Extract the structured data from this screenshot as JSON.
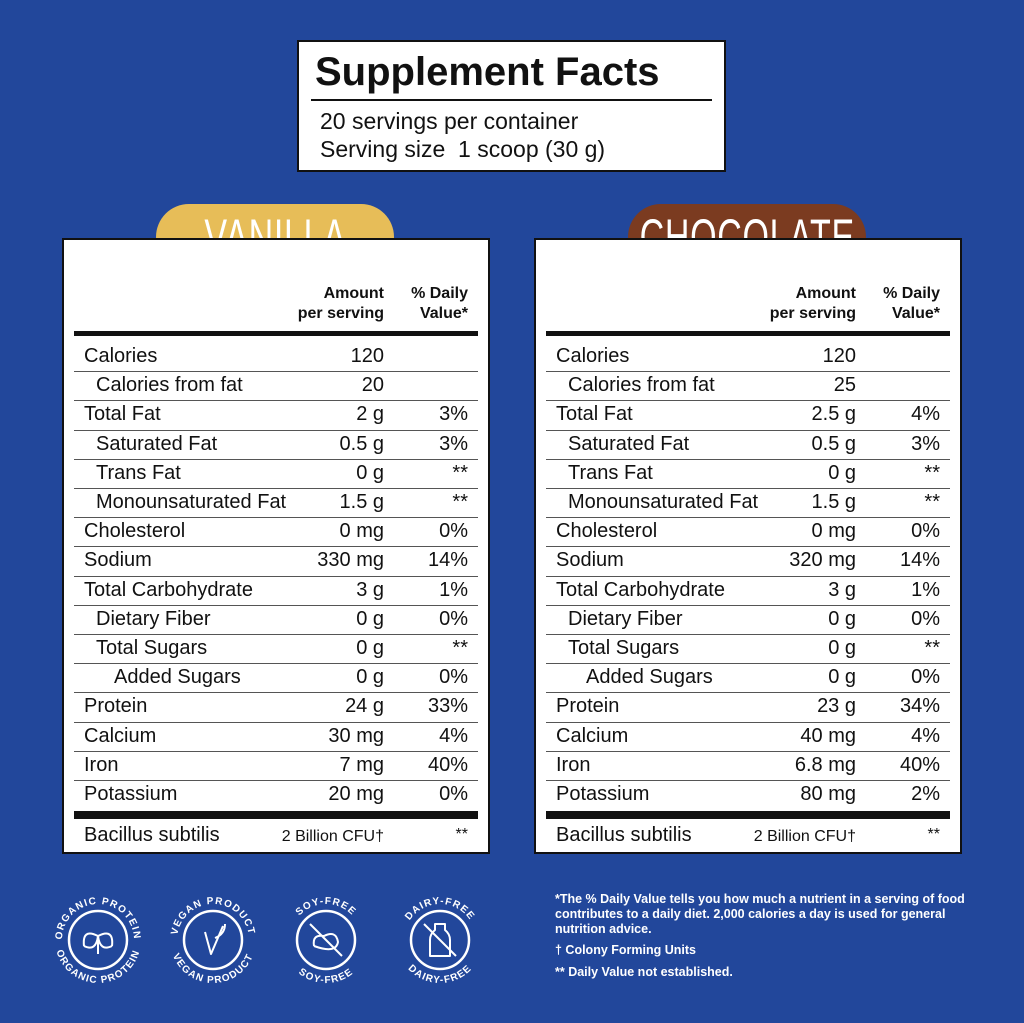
{
  "header": {
    "title": "Supplement Facts",
    "servings": "20 servings per container",
    "serving_size": "Serving size  1 scoop (30 g)"
  },
  "panels": [
    {
      "flavor": "VANILLA",
      "amount_header": [
        "Amount",
        "per serving"
      ],
      "dv_header": [
        "% Daily",
        "Value*"
      ],
      "rows": [
        {
          "name": "Calories",
          "amount": "120"
        },
        {
          "name": "Calories from fat",
          "amount": "20"
        },
        {
          "name": "Total Fat",
          "amount": "2 g",
          "dv": "3%"
        },
        {
          "name": "Saturated Fat",
          "amount": "0.5 g",
          "dv": "3%"
        },
        {
          "name": "Trans Fat",
          "amount": "0 g",
          "dv": "**"
        },
        {
          "name": "Monounsaturated Fat",
          "amount": "1.5 g",
          "dv": "**"
        },
        {
          "name": "Cholesterol",
          "amount": "0 mg",
          "dv": "0%"
        },
        {
          "name": "Sodium",
          "amount": "330 mg",
          "dv": "14%"
        },
        {
          "name": "Total Carbohydrate",
          "amount": "3 g",
          "dv": "1%"
        },
        {
          "name": "Dietary Fiber",
          "amount": "0 g",
          "dv": "0%"
        },
        {
          "name": "Total Sugars",
          "amount": "0 g",
          "dv": "**"
        },
        {
          "name": "Added Sugars",
          "amount": "0 g",
          "dv": "0%"
        },
        {
          "name": "Protein",
          "amount": "24 g",
          "dv": "33%"
        },
        {
          "name": "Calcium",
          "amount": "30 mg",
          "dv": "4%"
        },
        {
          "name": "Iron",
          "amount": "7 mg",
          "dv": "40%"
        },
        {
          "name": "Potassium",
          "amount": "20 mg",
          "dv": "0%"
        }
      ],
      "probiotic": {
        "name": "Bacillus subtilis",
        "amount": "2 Billion CFU†",
        "dv": "**"
      }
    },
    {
      "flavor": "CHOCOLATE",
      "amount_header": [
        "Amount",
        "per serving"
      ],
      "dv_header": [
        "% Daily",
        "Value*"
      ],
      "rows": [
        {
          "name": "Calories",
          "amount": "120"
        },
        {
          "name": "Calories from fat",
          "amount": "25"
        },
        {
          "name": "Total Fat",
          "amount": "2.5 g",
          "dv": "4%"
        },
        {
          "name": "Saturated Fat",
          "amount": "0.5 g",
          "dv": "3%"
        },
        {
          "name": "Trans Fat",
          "amount": "0 g",
          "dv": "**"
        },
        {
          "name": "Monounsaturated Fat",
          "amount": "1.5 g",
          "dv": "**"
        },
        {
          "name": "Cholesterol",
          "amount": "0 mg",
          "dv": "0%"
        },
        {
          "name": "Sodium",
          "amount": "320 mg",
          "dv": "14%"
        },
        {
          "name": "Total Carbohydrate",
          "amount": "3 g",
          "dv": "1%"
        },
        {
          "name": "Dietary Fiber",
          "amount": "0 g",
          "dv": "0%"
        },
        {
          "name": "Total Sugars",
          "amount": "0 g",
          "dv": "**"
        },
        {
          "name": "Added Sugars",
          "amount": "0 g",
          "dv": "0%"
        },
        {
          "name": "Protein",
          "amount": "23 g",
          "dv": "34%"
        },
        {
          "name": "Calcium",
          "amount": "40 mg",
          "dv": "4%"
        },
        {
          "name": "Iron",
          "amount": "6.8 mg",
          "dv": "40%"
        },
        {
          "name": "Potassium",
          "amount": "80 mg",
          "dv": "2%"
        }
      ],
      "probiotic": {
        "name": "Bacillus subtilis",
        "amount": "2 Billion CFU†",
        "dv": "**"
      }
    }
  ],
  "badges": [
    "ORGANIC PROTEIN",
    "VEGAN PRODUCT",
    "SOY-FREE",
    "DAIRY-FREE"
  ],
  "footnotes": [
    "*The % Daily Value tells you how much a nutrient in a serving of food contributes to a daily diet. 2,000 calories a day is used for general nutrition advice.",
    "† Colony Forming Units",
    "** Daily Value not established."
  ]
}
